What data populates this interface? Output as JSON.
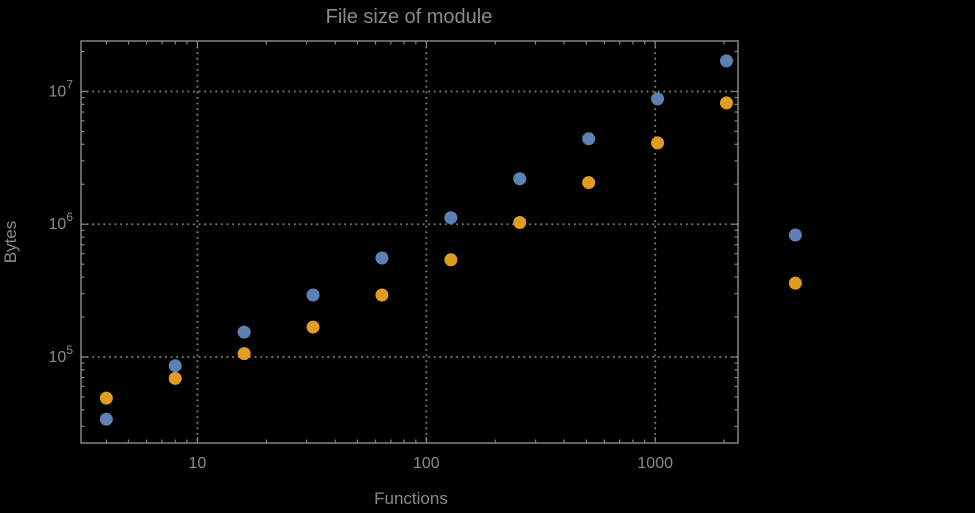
{
  "colors": {
    "background": "#000000",
    "frame": "#848484",
    "grid": "#7f7f7f",
    "text": "#8a8a8a",
    "series_blue": "#5E81B5",
    "series_orange": "#E19C24"
  },
  "chart_data": {
    "type": "scatter",
    "title": "File size of module",
    "xlabel": "Functions",
    "ylabel": "Bytes",
    "x_scale": "log",
    "y_scale": "log",
    "grid": "dotted, major decades only, no legend",
    "xlim": [
      3.1,
      2300
    ],
    "ylim": [
      22500,
      24000000
    ],
    "x_ticks": [
      10,
      100,
      1000
    ],
    "x_tick_labels": [
      "10",
      "100",
      "1000"
    ],
    "y_ticks": [
      100000,
      1000000,
      10000000
    ],
    "y_tick_exponents": [
      5,
      6,
      7
    ],
    "y_tick_base": "10",
    "x": [
      4,
      8,
      16,
      32,
      64,
      128,
      256,
      512,
      1024,
      2048,
      4096
    ],
    "series": [
      {
        "name": "blue",
        "color": "#5E81B5",
        "values": [
          34000,
          86000,
          154000,
          293000,
          557000,
          1120000,
          2200000,
          4400000,
          8800000,
          17000000,
          830000
        ]
      },
      {
        "name": "orange",
        "color": "#E19C24",
        "values": [
          49000,
          69000,
          106000,
          168000,
          293000,
          540000,
          1030000,
          2060000,
          4100000,
          8200000,
          360000
        ]
      }
    ]
  }
}
